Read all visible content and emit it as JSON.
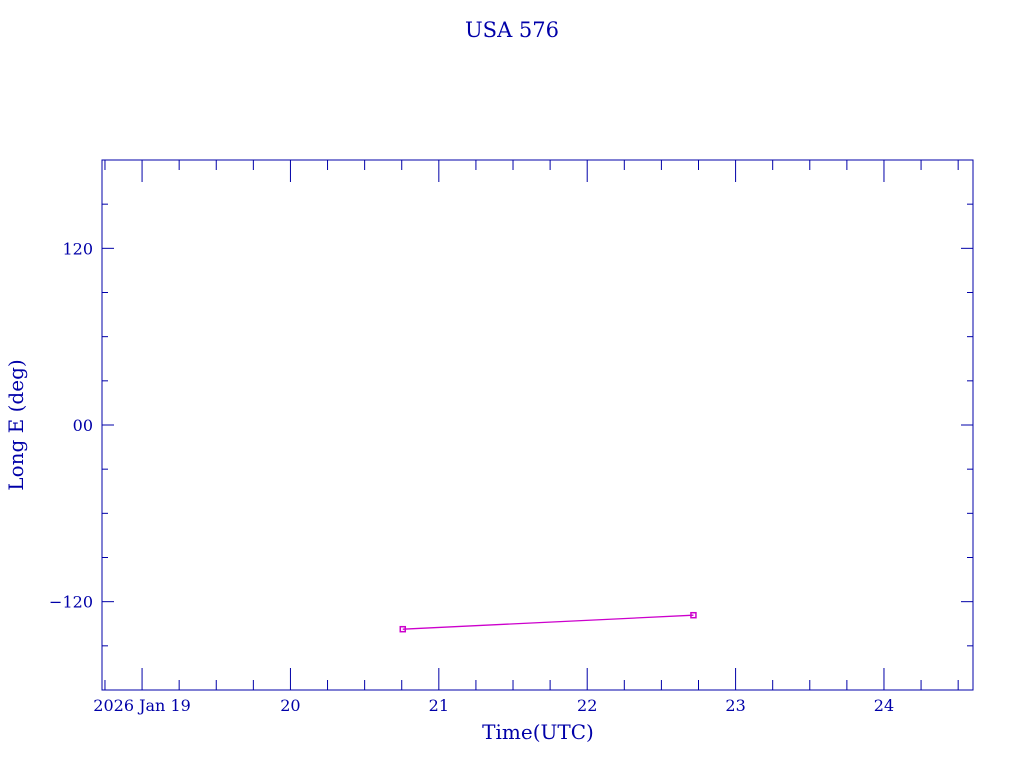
{
  "chart_data": {
    "type": "line",
    "title": "USA 576",
    "xlabel": "Time(UTC)",
    "ylabel": "Long E (deg)",
    "x_unit": "day of January 2026",
    "xlim": [
      18.73,
      24.6
    ],
    "ylim": [
      -180,
      180
    ],
    "x_ticks": [
      {
        "value": 19,
        "label": "2026 Jan 19"
      },
      {
        "value": 20,
        "label": "20"
      },
      {
        "value": 21,
        "label": "21"
      },
      {
        "value": 22,
        "label": "22"
      },
      {
        "value": 23,
        "label": "23"
      },
      {
        "value": 24,
        "label": "24"
      }
    ],
    "x_minor_step": 0.25,
    "y_ticks": [
      {
        "value": 120,
        "label": "120"
      },
      {
        "value": 0,
        "label": "00"
      },
      {
        "value": -120,
        "label": "−120"
      }
    ],
    "y_minor_step": 30,
    "grid": false,
    "series": [
      {
        "color": "#cc00cc",
        "x": [
          20.757,
          22.716
        ],
        "y": [
          -138.7,
          -129.2
        ]
      }
    ],
    "colors": {
      "axis": "#0000a8",
      "series": "#cc00cc"
    }
  }
}
